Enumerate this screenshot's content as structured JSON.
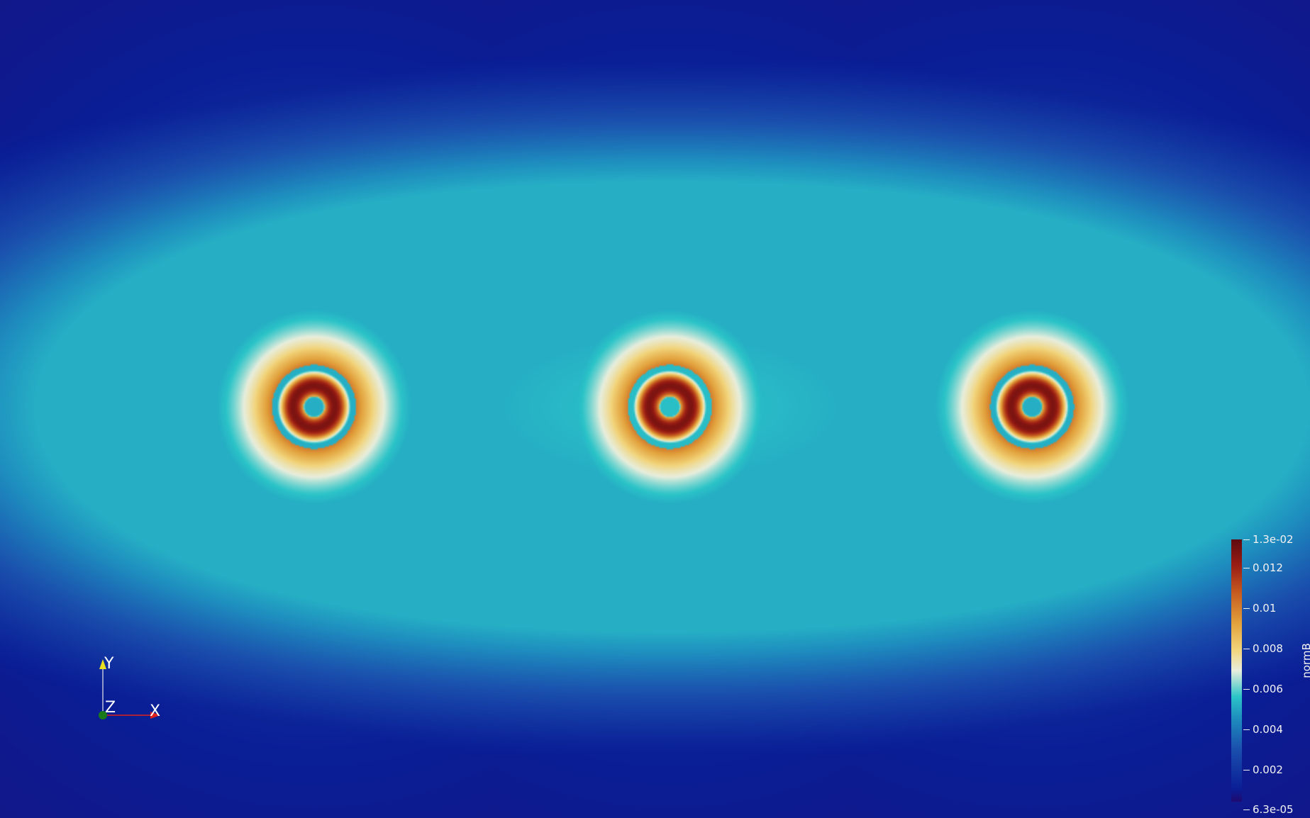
{
  "scene": {
    "background_color": "#160a5c",
    "field_name": "normB",
    "sources": [
      {
        "label": "",
        "value_max": 0.013
      },
      {
        "label": "",
        "value_max": 0.013
      },
      {
        "label": "",
        "value_max": 0.013
      }
    ]
  },
  "colorbar": {
    "title": "normB",
    "range": [
      6.3e-05,
      0.013
    ],
    "ticks": [
      {
        "label": "1.3e-02",
        "value": 0.013
      },
      {
        "label": "0.012",
        "value": 0.012
      },
      {
        "label": "0.01",
        "value": 0.01
      },
      {
        "label": "0.008",
        "value": 0.008
      },
      {
        "label": "0.006",
        "value": 0.006
      },
      {
        "label": "0.004",
        "value": 0.004
      },
      {
        "label": "0.002",
        "value": 0.002
      },
      {
        "label": "6.3e-05",
        "value": 6.3e-05
      }
    ],
    "colormap": [
      "#1f0a70",
      "#0a1e96",
      "#1a4fad",
      "#1e8fbf",
      "#2bc4c8",
      "#e8eedd",
      "#f2d47a",
      "#e2a13c",
      "#c5591f",
      "#9a1d14",
      "#5e0a0e"
    ]
  },
  "axes": {
    "x_label": "X",
    "y_label": "Y",
    "z_label": "Z",
    "x_color": "#e0201a",
    "y_color": "#e8e020",
    "z_color": "#1a7a1a"
  }
}
